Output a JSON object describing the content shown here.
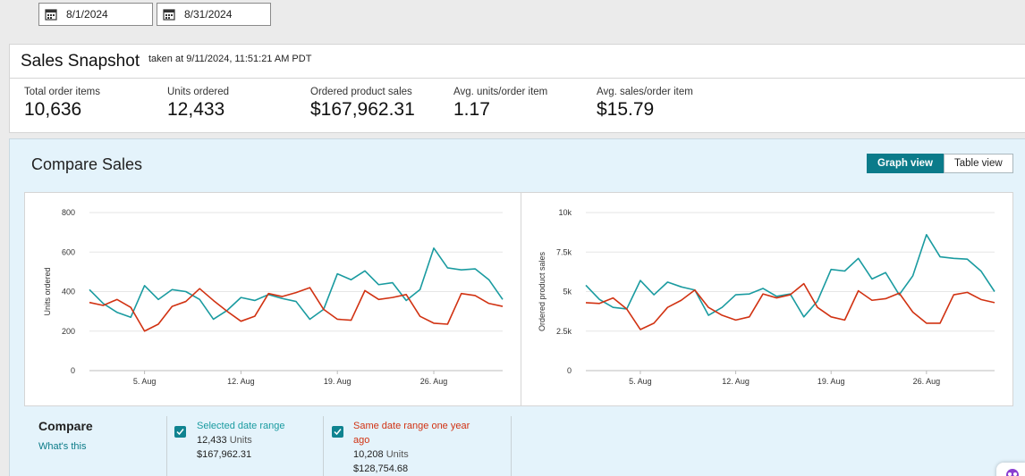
{
  "date_range": {
    "start": "8/1/2024",
    "end": "8/31/2024"
  },
  "snapshot": {
    "title": "Sales Snapshot",
    "taken": "taken at 9/11/2024, 11:51:21 AM PDT",
    "metrics": [
      {
        "label": "Total order items",
        "value": "10,636"
      },
      {
        "label": "Units ordered",
        "value": "12,433"
      },
      {
        "label": "Ordered product sales",
        "value": "$167,962.31"
      },
      {
        "label": "Avg. units/order item",
        "value": "1.17"
      },
      {
        "label": "Avg. sales/order item",
        "value": "$15.79"
      }
    ]
  },
  "compare": {
    "title": "Compare Sales",
    "graph_view_label": "Graph view",
    "table_view_label": "Table view",
    "compare_label": "Compare",
    "whats_this": "What's this",
    "legend": [
      {
        "label": "Selected date range",
        "units": "12,433",
        "unit_word": "Units",
        "sales": "$167,962.31",
        "color": "#1a9ba0"
      },
      {
        "label_line1": "Same date range one year",
        "label_line2": "ago",
        "units": "10,208",
        "unit_word": "Units",
        "sales": "$128,754.68",
        "color": "#d13212"
      }
    ]
  },
  "chart_data": [
    {
      "type": "line",
      "ylabel": "Units ordered",
      "ylim": [
        0,
        800
      ],
      "yticks": [
        "0",
        "200",
        "400",
        "600",
        "800"
      ],
      "ytick_values": [
        0,
        200,
        400,
        600,
        800
      ],
      "x": [
        1,
        2,
        3,
        4,
        5,
        6,
        7,
        8,
        9,
        10,
        11,
        12,
        13,
        14,
        15,
        16,
        17,
        18,
        19,
        20,
        21,
        22,
        23,
        24,
        25,
        26,
        27,
        28,
        29,
        30,
        31
      ],
      "xticks": [
        {
          "day": 5,
          "label": "5. Aug"
        },
        {
          "day": 12,
          "label": "12. Aug"
        },
        {
          "day": 19,
          "label": "19. Aug"
        },
        {
          "day": 26,
          "label": "26. Aug"
        }
      ],
      "series": [
        {
          "name": "Selected date range",
          "color": "#1a9ba0",
          "values": [
            410,
            340,
            295,
            270,
            430,
            360,
            410,
            400,
            360,
            260,
            305,
            370,
            355,
            385,
            365,
            350,
            260,
            310,
            490,
            460,
            505,
            435,
            445,
            355,
            410,
            620,
            520,
            510,
            515,
            460,
            360
          ]
        },
        {
          "name": "Same date range one year ago",
          "color": "#d13212",
          "values": [
            345,
            330,
            360,
            320,
            200,
            235,
            325,
            350,
            415,
            355,
            300,
            250,
            275,
            390,
            375,
            395,
            420,
            310,
            260,
            255,
            405,
            360,
            370,
            385,
            275,
            240,
            235,
            390,
            380,
            340,
            325
          ]
        }
      ]
    },
    {
      "type": "line",
      "ylabel": "Ordered product sales",
      "ylim": [
        0,
        10000
      ],
      "yticks": [
        "0",
        "2.5k",
        "5k",
        "7.5k",
        "10k"
      ],
      "ytick_values": [
        0,
        2500,
        5000,
        7500,
        10000
      ],
      "x": [
        1,
        2,
        3,
        4,
        5,
        6,
        7,
        8,
        9,
        10,
        11,
        12,
        13,
        14,
        15,
        16,
        17,
        18,
        19,
        20,
        21,
        22,
        23,
        24,
        25,
        26,
        27,
        28,
        29,
        30,
        31
      ],
      "xticks": [
        {
          "day": 5,
          "label": "5. Aug"
        },
        {
          "day": 12,
          "label": "12. Aug"
        },
        {
          "day": 19,
          "label": "19. Aug"
        },
        {
          "day": 26,
          "label": "26. Aug"
        }
      ],
      "series": [
        {
          "name": "Selected date range",
          "color": "#1a9ba0",
          "values": [
            5400,
            4500,
            4000,
            3900,
            5700,
            4800,
            5600,
            5300,
            5100,
            3500,
            4000,
            4800,
            4850,
            5200,
            4700,
            4850,
            3400,
            4400,
            6400,
            6300,
            7100,
            5800,
            6200,
            4800,
            6000,
            8600,
            7200,
            7100,
            7050,
            6300,
            5000
          ]
        },
        {
          "name": "Same date range one year ago",
          "color": "#d13212",
          "values": [
            4300,
            4250,
            4600,
            3900,
            2600,
            3000,
            4000,
            4450,
            5100,
            4000,
            3500,
            3200,
            3400,
            4850,
            4600,
            4800,
            5500,
            4000,
            3400,
            3200,
            5050,
            4450,
            4550,
            4900,
            3700,
            3000,
            3000,
            4800,
            4950,
            4500,
            4300
          ]
        }
      ]
    }
  ]
}
